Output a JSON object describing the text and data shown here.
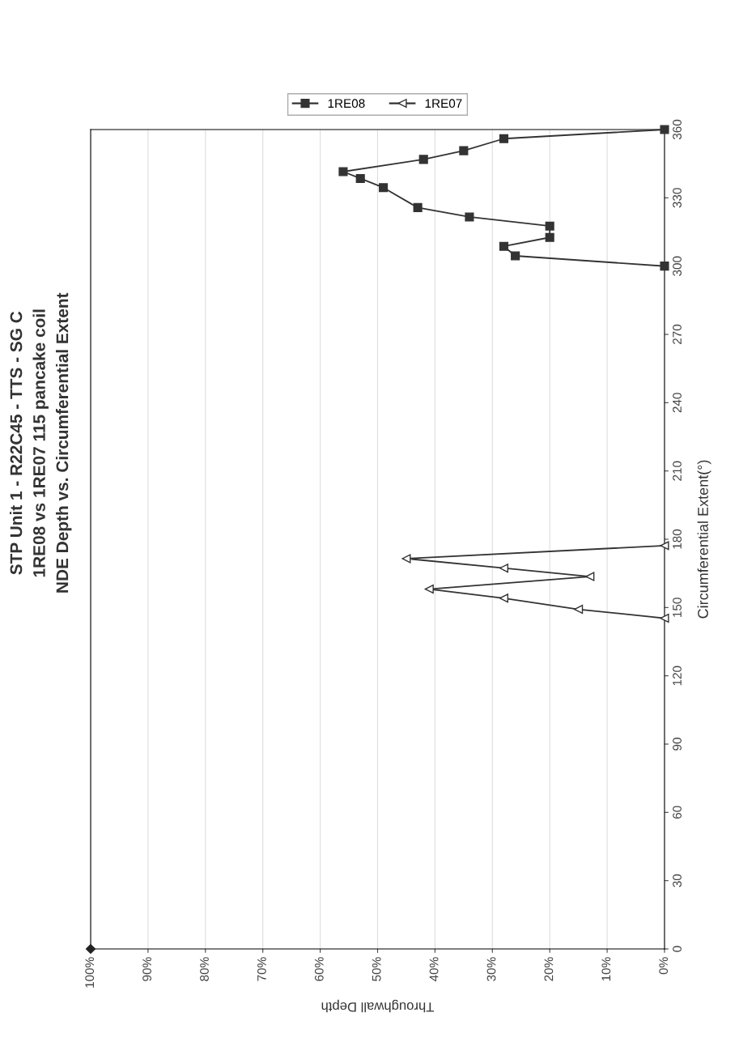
{
  "chart_data": {
    "type": "line",
    "title": "STP Unit 1 - R22C45 - TTS - SG C\n1RE08 vs 1RE07 115 pancake coil\nNDE Depth vs. Circumferential Extent",
    "xlabel": "Throughwall Depth",
    "ylabel": "Circumferential Extent(°)",
    "xlim": [
      100,
      0
    ],
    "xticks": [
      {
        "value": 0,
        "label": "0%"
      },
      {
        "value": 10,
        "label": "10%"
      },
      {
        "value": 20,
        "label": "20%"
      },
      {
        "value": 30,
        "label": "30%"
      },
      {
        "value": 40,
        "label": "40%"
      },
      {
        "value": 50,
        "label": "50%"
      },
      {
        "value": 60,
        "label": "60%"
      },
      {
        "value": 70,
        "label": "70%"
      },
      {
        "value": 80,
        "label": "80%"
      },
      {
        "value": 90,
        "label": "90%"
      },
      {
        "value": 100,
        "label": "100%"
      }
    ],
    "ylim": [
      0,
      360
    ],
    "yticks": [
      0,
      30,
      60,
      90,
      120,
      150,
      180,
      210,
      240,
      270,
      300,
      330,
      360
    ],
    "grid": "x",
    "legend": "top",
    "series": [
      {
        "name": "1RE08",
        "color": "#333333",
        "marker": "square",
        "x": [
          0,
          28,
          35,
          42,
          56,
          53,
          49,
          43,
          34,
          20,
          20,
          28,
          26,
          0
        ],
        "values": [
          360,
          356,
          350.7,
          346.9,
          341.5,
          338.5,
          334.5,
          325.7,
          321.6,
          317.6,
          312.6,
          308.7,
          304.5,
          300
        ]
      },
      {
        "name": "1RE07",
        "color": "#333333",
        "marker": "triangle",
        "x": [
          0,
          15,
          28,
          41,
          13,
          28,
          45,
          0
        ],
        "values": [
          145.3,
          149.2,
          154.1,
          158.1,
          163.6,
          167.3,
          171.5,
          177.2
        ]
      },
      {
        "type": "scatter",
        "color": "#222222",
        "marker": "diamond",
        "x": [
          100
        ],
        "values": [
          0
        ]
      }
    ]
  }
}
